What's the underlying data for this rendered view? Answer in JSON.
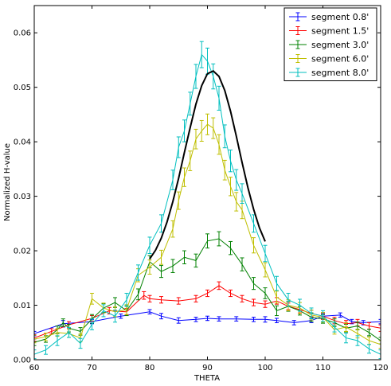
{
  "chart_data": {
    "type": "line",
    "title": "",
    "xlabel": "THETA",
    "ylabel": "Normalized H-value",
    "xlim": [
      60,
      120
    ],
    "ylim": [
      0.0,
      0.065
    ],
    "xticks": [
      60,
      70,
      80,
      90,
      100,
      110,
      120
    ],
    "xtick_labels": [
      "60",
      "70",
      "80",
      "90",
      "100",
      "110",
      "120"
    ],
    "yticks": [
      0.0,
      0.01,
      0.02,
      0.03,
      0.04,
      0.05,
      0.06
    ],
    "ytick_labels": [
      "0.00",
      "0.01",
      "0.02",
      "0.03",
      "0.04",
      "0.05",
      "0.06"
    ],
    "grid": false,
    "legend_position": "top-right",
    "series": [
      {
        "name": "segment 0.8'",
        "color": "#0000ff",
        "x": [
          60,
          65,
          70,
          75,
          80,
          82,
          85,
          88,
          90,
          92,
          95,
          98,
          100,
          102,
          105,
          108,
          110,
          113,
          115,
          117,
          120
        ],
        "y": [
          0.0048,
          0.0066,
          0.007,
          0.008,
          0.0088,
          0.008,
          0.0072,
          0.0074,
          0.0076,
          0.0075,
          0.0075,
          0.0074,
          0.0074,
          0.0072,
          0.0068,
          0.0072,
          0.008,
          0.0082,
          0.007,
          0.0068,
          0.007
        ],
        "err": [
          0.0004,
          0.0006,
          0.0004,
          0.0004,
          0.0004,
          0.0005,
          0.0005,
          0.0004,
          0.0004,
          0.0004,
          0.0004,
          0.0004,
          0.0005,
          0.0004,
          0.0004,
          0.0004,
          0.0004,
          0.0004,
          0.0004,
          0.0004,
          0.0004
        ]
      },
      {
        "name": "segment 1.5'",
        "color": "#ff0000",
        "x": [
          60,
          63,
          66,
          70,
          73,
          76,
          79,
          80,
          82,
          85,
          88,
          90,
          92,
          94,
          96,
          98,
          100,
          102,
          104,
          106,
          108,
          110,
          112,
          114,
          116,
          118,
          120
        ],
        "y": [
          0.004,
          0.0052,
          0.0064,
          0.0076,
          0.009,
          0.0088,
          0.0118,
          0.0112,
          0.011,
          0.0108,
          0.0112,
          0.0122,
          0.0136,
          0.0122,
          0.0112,
          0.0105,
          0.0102,
          0.0108,
          0.0098,
          0.0092,
          0.0085,
          0.008,
          0.0072,
          0.0066,
          0.0068,
          0.0062,
          0.0058
        ],
        "err": [
          0.0006,
          0.0005,
          0.0006,
          0.0005,
          0.0006,
          0.0006,
          0.0007,
          0.0006,
          0.0006,
          0.0006,
          0.0006,
          0.0006,
          0.0007,
          0.0006,
          0.0006,
          0.0006,
          0.0006,
          0.0006,
          0.0006,
          0.0006,
          0.0006,
          0.0006,
          0.0006,
          0.0006,
          0.0006,
          0.0006,
          0.0006
        ]
      },
      {
        "name": "segment 3.0'",
        "color": "#008000",
        "x": [
          60,
          62,
          64,
          65,
          66,
          68,
          70,
          72,
          74,
          76,
          78,
          80,
          82,
          84,
          86,
          88,
          90,
          92,
          94,
          96,
          98,
          100,
          102,
          104,
          106,
          108,
          110,
          112,
          114,
          116,
          118,
          120
        ],
        "y": [
          0.0032,
          0.0038,
          0.0055,
          0.0068,
          0.0058,
          0.0052,
          0.0075,
          0.0095,
          0.0105,
          0.009,
          0.012,
          0.018,
          0.0162,
          0.0172,
          0.0188,
          0.0182,
          0.0218,
          0.0222,
          0.0205,
          0.0175,
          0.014,
          0.0122,
          0.009,
          0.0098,
          0.009,
          0.0078,
          0.0075,
          0.0068,
          0.0058,
          0.0062,
          0.005,
          0.0035
        ],
        "err": [
          0.0006,
          0.0006,
          0.0007,
          0.0007,
          0.0007,
          0.0007,
          0.0008,
          0.0008,
          0.0009,
          0.0009,
          0.001,
          0.0011,
          0.0011,
          0.0012,
          0.0012,
          0.0012,
          0.0013,
          0.0013,
          0.0012,
          0.0012,
          0.0011,
          0.001,
          0.0009,
          0.0009,
          0.0008,
          0.0008,
          0.0008,
          0.0007,
          0.0007,
          0.0007,
          0.0006,
          0.0006
        ]
      },
      {
        "name": "segment 6.0'",
        "color": "#bfbf00",
        "x": [
          60,
          62,
          64,
          66,
          68,
          70,
          72,
          74,
          76,
          78,
          80,
          82,
          84,
          85,
          86,
          87,
          88,
          89,
          90,
          91,
          92,
          93,
          94,
          95,
          96,
          98,
          100,
          102,
          104,
          106,
          108,
          110,
          112,
          114,
          116,
          118,
          120
        ],
        "y": [
          0.0038,
          0.0042,
          0.005,
          0.0048,
          0.004,
          0.0112,
          0.0095,
          0.0088,
          0.0092,
          0.0155,
          0.017,
          0.0188,
          0.024,
          0.0292,
          0.0335,
          0.0365,
          0.0405,
          0.042,
          0.0432,
          0.0425,
          0.0395,
          0.0348,
          0.0318,
          0.029,
          0.0275,
          0.021,
          0.0165,
          0.0115,
          0.01,
          0.0095,
          0.0082,
          0.0078,
          0.0055,
          0.006,
          0.0048,
          0.0035,
          0.0028
        ],
        "err": [
          0.0007,
          0.0007,
          0.0007,
          0.0007,
          0.0007,
          0.001,
          0.0009,
          0.0009,
          0.0009,
          0.0012,
          0.0013,
          0.0013,
          0.0015,
          0.0016,
          0.0017,
          0.0018,
          0.0018,
          0.0019,
          0.0019,
          0.0019,
          0.0018,
          0.0018,
          0.0017,
          0.0017,
          0.0016,
          0.0014,
          0.0013,
          0.0011,
          0.001,
          0.001,
          0.0009,
          0.0009,
          0.0008,
          0.0008,
          0.0008,
          0.0007,
          0.0007
        ]
      },
      {
        "name": "segment 8.0'",
        "color": "#00bfbf",
        "x": [
          60,
          62,
          64,
          66,
          68,
          70,
          72,
          74,
          76,
          78,
          80,
          82,
          84,
          85,
          86,
          87,
          88,
          89,
          90,
          91,
          92,
          93,
          94,
          95,
          96,
          98,
          100,
          102,
          104,
          106,
          108,
          110,
          112,
          114,
          116,
          118,
          120
        ],
        "y": [
          0.001,
          0.0018,
          0.0035,
          0.005,
          0.003,
          0.0065,
          0.009,
          0.008,
          0.011,
          0.016,
          0.021,
          0.025,
          0.033,
          0.039,
          0.042,
          0.047,
          0.052,
          0.056,
          0.0548,
          0.052,
          0.048,
          0.041,
          0.0365,
          0.033,
          0.0305,
          0.025,
          0.0195,
          0.014,
          0.011,
          0.01,
          0.0085,
          0.008,
          0.006,
          0.004,
          0.0035,
          0.002,
          0.001
        ],
        "err": [
          0.0008,
          0.0008,
          0.0009,
          0.0009,
          0.0009,
          0.001,
          0.0011,
          0.0011,
          0.0012,
          0.0014,
          0.0015,
          0.0016,
          0.0018,
          0.0019,
          0.002,
          0.0021,
          0.0022,
          0.0024,
          0.0024,
          0.0023,
          0.0022,
          0.0021,
          0.002,
          0.0019,
          0.0018,
          0.0016,
          0.0015,
          0.0013,
          0.0012,
          0.0011,
          0.001,
          0.001,
          0.0009,
          0.0009,
          0.0009,
          0.0008,
          0.0008
        ]
      }
    ],
    "fit_curve": {
      "color": "#000000",
      "x": [
        80,
        81,
        82,
        83,
        84,
        85,
        86,
        87,
        88,
        89,
        90,
        91,
        92,
        93,
        94,
        95,
        96,
        97,
        98,
        99,
        100
      ],
      "y": [
        0.0185,
        0.0201,
        0.0223,
        0.0253,
        0.029,
        0.0333,
        0.038,
        0.0426,
        0.0469,
        0.0503,
        0.0525,
        0.053,
        0.052,
        0.0494,
        0.0456,
        0.041,
        0.0362,
        0.0316,
        0.0276,
        0.0242,
        0.0217
      ]
    }
  }
}
